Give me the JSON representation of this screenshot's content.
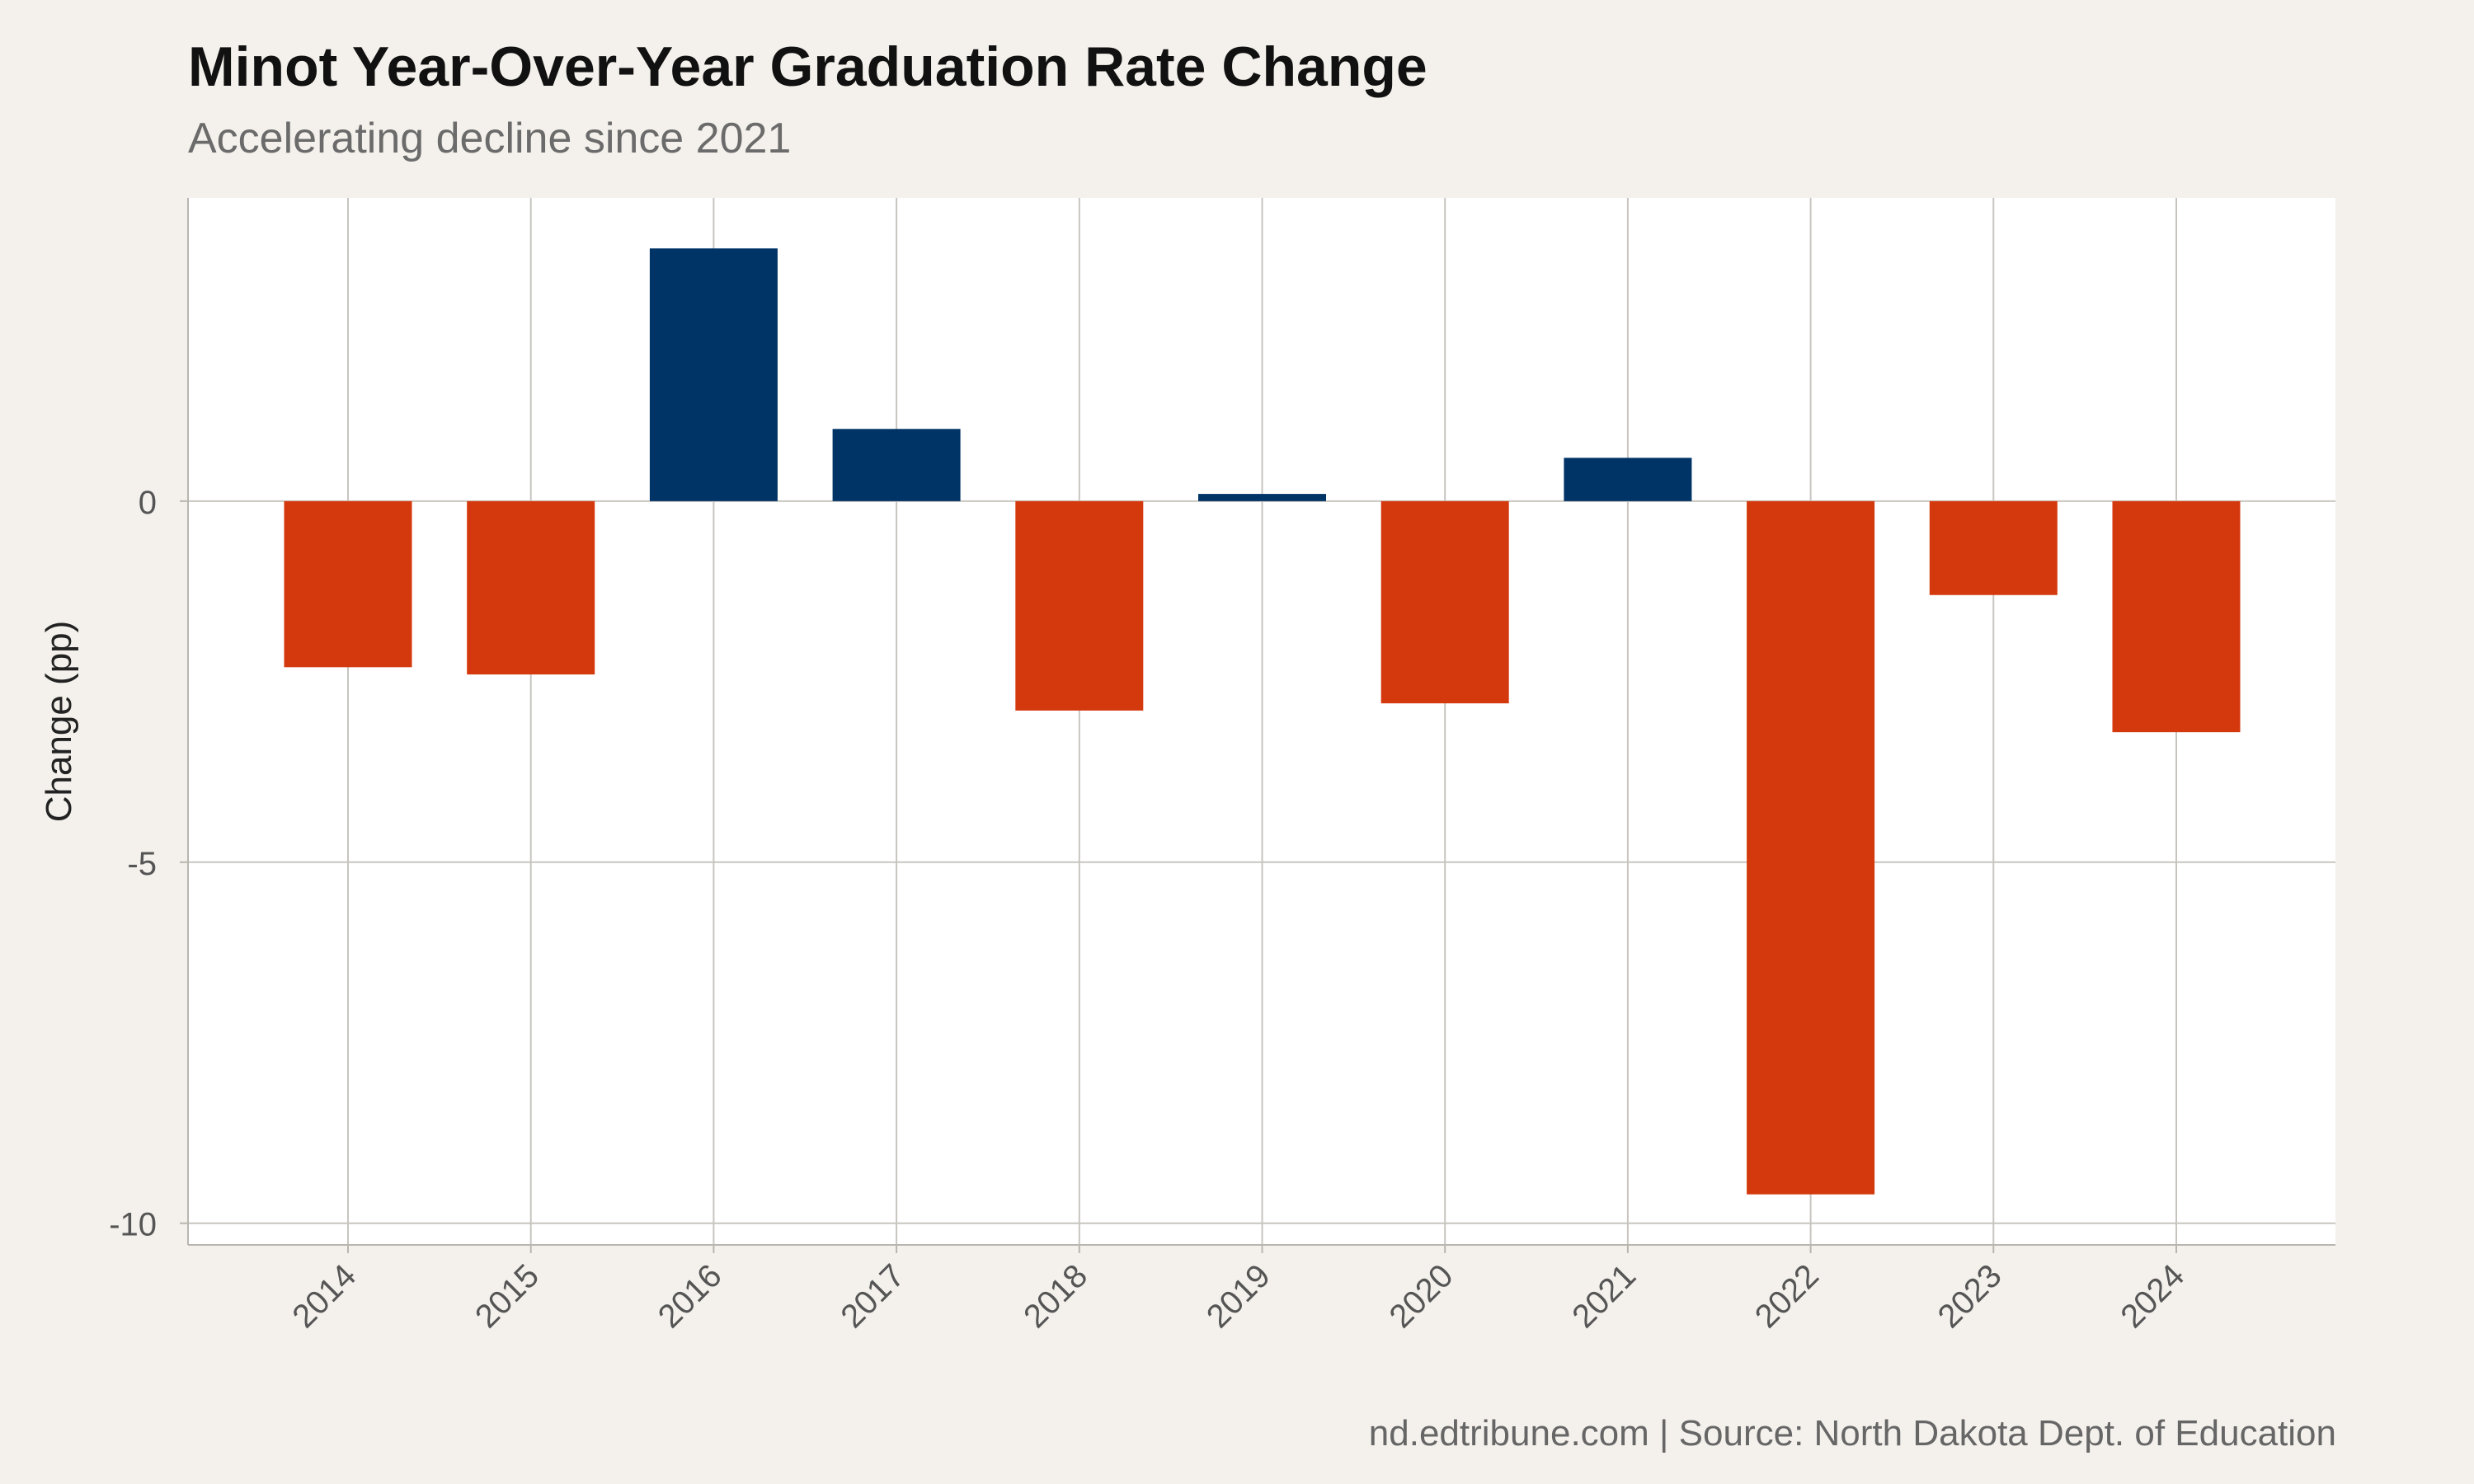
{
  "chart": {
    "title": "Minot Year-Over-Year Graduation Rate Change",
    "subtitle": "Accelerating decline since 2021",
    "caption": "nd.edtribune.com | Source: North Dakota Dept. of Education"
  },
  "chart_data": {
    "type": "bar",
    "title": "Minot Year-Over-Year Graduation Rate Change",
    "subtitle": "Accelerating decline since 2021",
    "xlabel": "",
    "ylabel": "Change (pp)",
    "categories": [
      "2014",
      "2015",
      "2016",
      "2017",
      "2018",
      "2019",
      "2020",
      "2021",
      "2022",
      "2023",
      "2024"
    ],
    "values": [
      -2.3,
      -2.4,
      3.5,
      1.0,
      -2.9,
      0.1,
      -2.8,
      0.6,
      -9.6,
      -1.3,
      -3.2
    ],
    "ylim": [
      -10.3,
      4.2
    ],
    "yticks": [
      0,
      -5,
      -10
    ],
    "ytick_labels": [
      "0",
      "-5",
      "-10"
    ],
    "grid": true,
    "legend": "none",
    "colors": {
      "positive": "#003366",
      "negative": "#d4380d",
      "panel": "#ffffff",
      "background": "#f4f1ec",
      "grid": "#c8c5bf"
    }
  }
}
